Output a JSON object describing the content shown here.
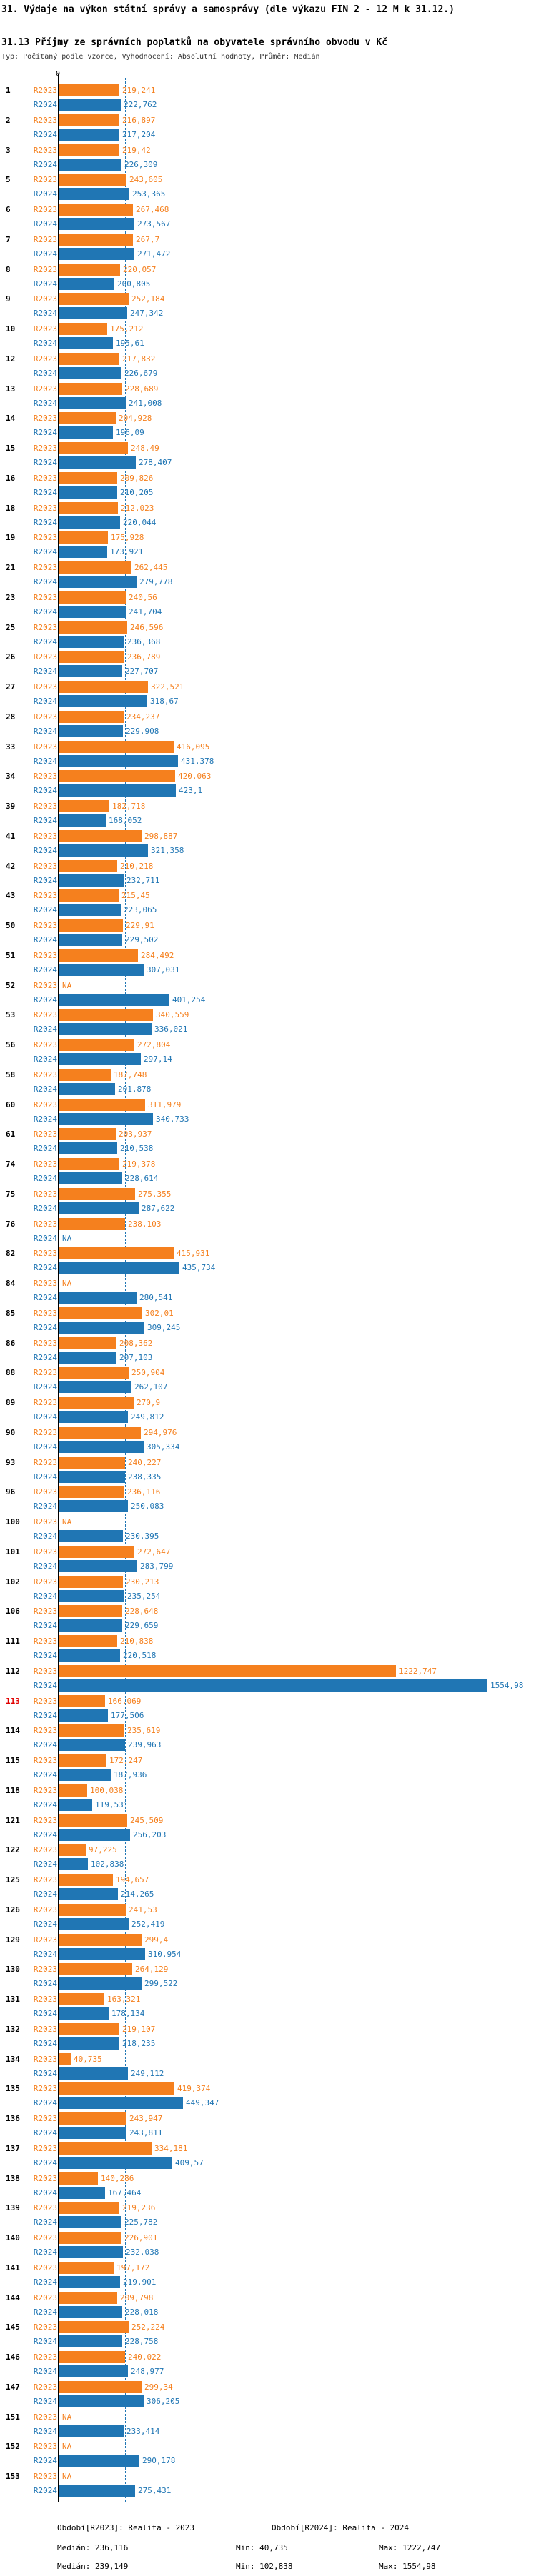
{
  "title": "31. Výdaje na výkon státní správy a samosprávy (dle výkazu FIN 2 - 12 M k 31.12.)",
  "subtitle": "31.13 Příjmy ze správních poplatků na obyvatele správního obvodu v Kč",
  "meta": "Typ: Počítaný podle vzorce, Vyhodnocení: Absolutní hodnoty, Průměr: Medián",
  "axis": {
    "zero": "0"
  },
  "colors": {
    "r2023": "#f5801e",
    "r2024": "#2076b4",
    "highlight": "#e00000",
    "axis": "#000000"
  },
  "legend": {
    "r2023": "Období[R2023]: Realita - 2023",
    "r2024": "Období[R2024]: Realita - 2024"
  },
  "stats": {
    "r2023": {
      "median": "Medián: 236,116",
      "min": "Min: 40,735",
      "max": "Max: 1222,747"
    },
    "r2024": {
      "median": "Medián: 239,149",
      "min": "Min: 102,838",
      "max": "Max: 1554,98"
    }
  },
  "chart_data": {
    "type": "bar",
    "orientation": "horizontal",
    "x_zero_label": "0",
    "na_label": "NA",
    "decimal_separator": ",",
    "categories": [
      "1",
      "2",
      "3",
      "5",
      "6",
      "7",
      "8",
      "9",
      "10",
      "12",
      "13",
      "14",
      "15",
      "16",
      "18",
      "19",
      "21",
      "23",
      "25",
      "26",
      "27",
      "28",
      "33",
      "34",
      "39",
      "41",
      "42",
      "43",
      "50",
      "51",
      "52",
      "53",
      "56",
      "58",
      "60",
      "61",
      "74",
      "75",
      "76",
      "82",
      "84",
      "85",
      "86",
      "88",
      "89",
      "90",
      "93",
      "96",
      "100",
      "101",
      "102",
      "106",
      "111",
      "112",
      "113",
      "114",
      "115",
      "118",
      "121",
      "122",
      "125",
      "126",
      "129",
      "130",
      "131",
      "132",
      "134",
      "135",
      "136",
      "137",
      "138",
      "139",
      "140",
      "141",
      "144",
      "145",
      "146",
      "147",
      "151",
      "152",
      "153"
    ],
    "highlighted_categories": [
      "113"
    ],
    "series": [
      {
        "name": "R2023",
        "period": "Realita - 2023",
        "color": "#f5801e",
        "values": [
          219.241,
          216.897,
          219.42,
          243.605,
          267.468,
          267.7,
          220.057,
          252.184,
          175.212,
          217.832,
          228.689,
          204.928,
          248.49,
          209.826,
          212.023,
          175.928,
          262.445,
          240.56,
          246.596,
          236.789,
          322.521,
          234.237,
          416.095,
          420.063,
          182.718,
          298.887,
          210.218,
          215.45,
          229.91,
          284.492,
          null,
          340.559,
          272.804,
          187.748,
          311.979,
          203.937,
          219.378,
          275.355,
          238.103,
          415.931,
          null,
          302.01,
          208.362,
          250.904,
          270.9,
          294.976,
          240.227,
          236.116,
          null,
          272.647,
          230.213,
          228.648,
          210.838,
          1222.747,
          166.069,
          235.619,
          172.247,
          100.038,
          245.509,
          97.225,
          194.657,
          241.53,
          299.4,
          264.129,
          163.321,
          219.107,
          40.735,
          419.374,
          243.947,
          334.181,
          140.286,
          219.236,
          226.901,
          197.172,
          209.798,
          252.224,
          240.022,
          299.34,
          null,
          null,
          null
        ]
      },
      {
        "name": "R2024",
        "period": "Realita - 2024",
        "color": "#2076b4",
        "values": [
          222.762,
          217.204,
          226.309,
          253.365,
          273.567,
          271.472,
          200.805,
          247.342,
          195.61,
          226.679,
          241.008,
          196.09,
          278.407,
          210.205,
          220.044,
          173.921,
          279.778,
          241.704,
          236.368,
          227.707,
          318.67,
          229.908,
          431.378,
          423.1,
          168.052,
          321.358,
          232.711,
          223.065,
          229.502,
          307.031,
          401.254,
          336.021,
          297.14,
          201.878,
          340.733,
          210.538,
          228.614,
          287.622,
          null,
          435.734,
          280.541,
          309.245,
          207.103,
          262.107,
          249.812,
          305.334,
          238.335,
          250.083,
          230.395,
          283.799,
          235.254,
          229.659,
          220.518,
          1554.98,
          177.506,
          239.963,
          187.936,
          119.531,
          256.203,
          102.838,
          214.265,
          252.419,
          310.954,
          299.522,
          178.134,
          218.235,
          249.112,
          449.347,
          243.811,
          409.57,
          167.464,
          225.782,
          232.038,
          219.901,
          228.018,
          228.758,
          248.977,
          306.205,
          233.414,
          290.178,
          275.431
        ]
      }
    ],
    "medians": {
      "R2023": 236.116,
      "R2024": 239.149
    },
    "mins": {
      "R2023": 40.735,
      "R2024": 102.838
    },
    "maxs": {
      "R2023": 1222.747,
      "R2024": 1554.98
    },
    "xlim": [
      0,
      1600
    ]
  }
}
